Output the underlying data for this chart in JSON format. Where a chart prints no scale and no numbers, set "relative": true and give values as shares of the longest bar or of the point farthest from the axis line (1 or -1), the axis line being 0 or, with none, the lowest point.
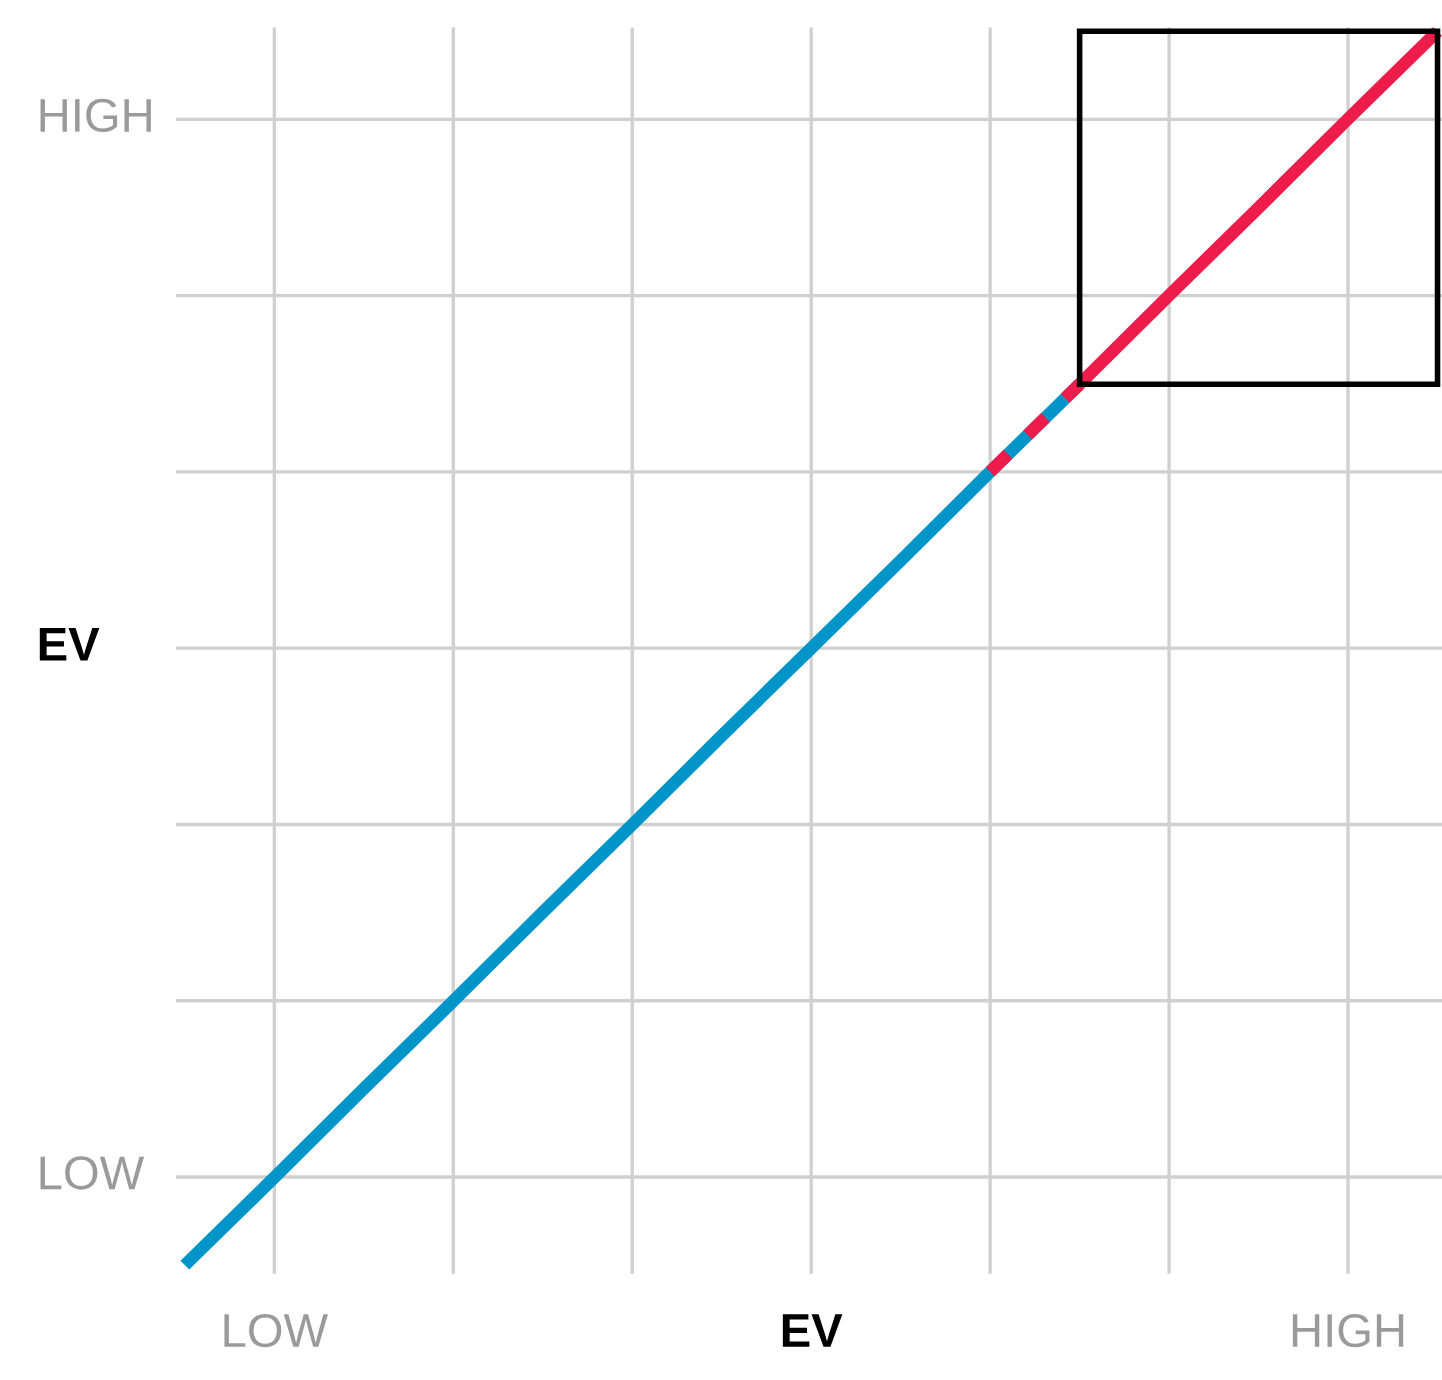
{
  "chart_data": {
    "type": "line",
    "relative": true,
    "categories": [
      null,
      "LOW",
      null,
      null,
      null,
      null,
      null,
      "EV",
      null,
      null,
      null,
      null,
      null,
      "HIGH",
      null
    ],
    "grid": true,
    "annotations": [
      "LOW",
      "EV",
      "HIGH"
    ],
    "series": [
      {
        "color": "#0095c8",
        "values": [
          0,
          0.071,
          0.143,
          0.214,
          0.286,
          0.357,
          0.429,
          0.5,
          0.571,
          0.643,
          0.714,
          null,
          null,
          null,
          null
        ],
        "line_style": "solid"
      },
      {
        "color": "#ee1c4b",
        "values": [
          null,
          null,
          null,
          null,
          null,
          null,
          null,
          null,
          null,
          0.643,
          0.714,
          null,
          null,
          null,
          null
        ],
        "line_style": "dashed"
      },
      {
        "color": "#ee1c4b",
        "values": [
          null,
          null,
          null,
          null,
          null,
          null,
          null,
          null,
          null,
          null,
          0.714,
          0.786,
          0.857,
          0.929,
          1
        ],
        "line_style": "solid"
      }
    ]
  }
}
